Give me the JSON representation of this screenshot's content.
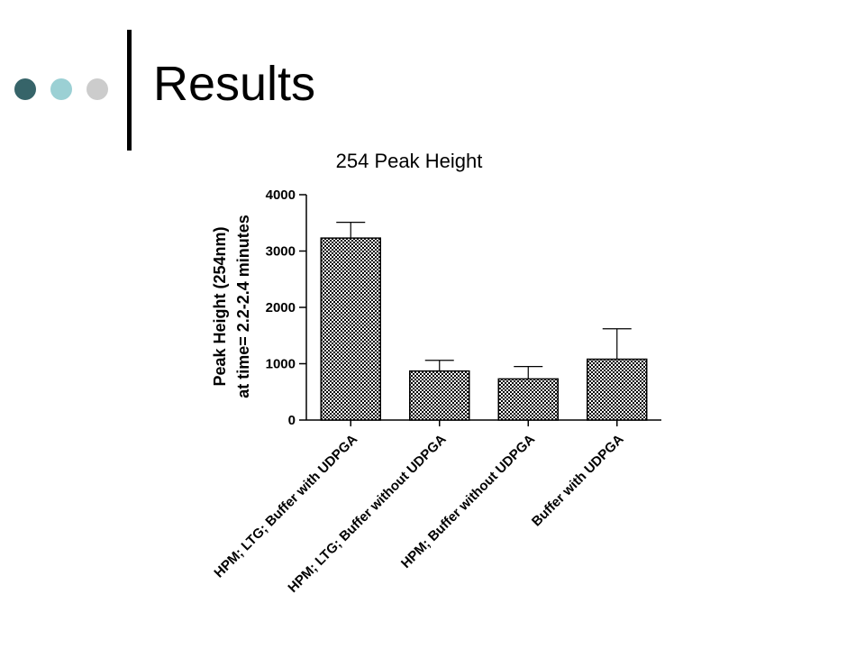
{
  "slide": {
    "title": "Results",
    "dot_colors": [
      "#366469",
      "#9bd0d4",
      "#cccccc"
    ]
  },
  "chart_data": {
    "type": "bar",
    "title": "254 Peak Height",
    "ylabel_lines": [
      "Peak Height (254nm)",
      "at time= 2.2-2.4 minutes"
    ],
    "xlabel": "",
    "categories": [
      "HPM; LTG; Buffer with UDPGA",
      "HPM; LTG; Buffer without UDPGA",
      "HPM; Buffer without UDPGA",
      "Buffer with UDPGA"
    ],
    "values": [
      3230,
      870,
      730,
      1080
    ],
    "errors": [
      280,
      190,
      220,
      540
    ],
    "ylim": [
      0,
      4000
    ],
    "yticks": [
      0,
      1000,
      2000,
      3000,
      4000
    ],
    "bar_pattern": "checkered",
    "grid": false,
    "legend": "none"
  }
}
